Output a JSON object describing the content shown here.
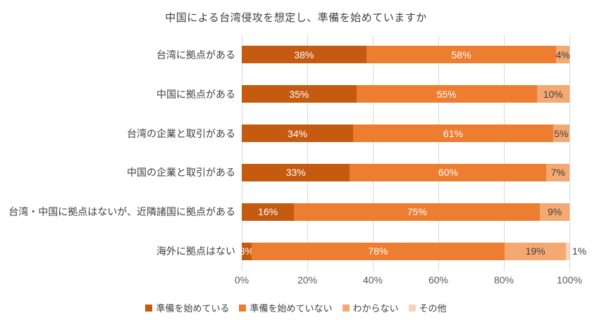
{
  "chart_data": {
    "type": "bar",
    "subtype": "stacked-horizontal",
    "title": "中国による台湾侵攻を想定し、準備を始めていますか",
    "categories": [
      "台湾に拠点がある",
      "中国に拠点がある",
      "台湾の企業と取引がある",
      "中国の企業と取引がある",
      "台湾・中国に拠点はないが、近隣諸国に拠点がある",
      "海外に拠点はない"
    ],
    "series": [
      {
        "name": "準備を始めている",
        "color": "#C55A11",
        "label_color": "#FFFFFF",
        "values": [
          38,
          35,
          34,
          33,
          16,
          3
        ]
      },
      {
        "name": "準備を始めていない",
        "color": "#ED7D31",
        "label_color": "#FFFFFF",
        "values": [
          58,
          55,
          61,
          60,
          75,
          78
        ]
      },
      {
        "name": "わからない",
        "color": "#F4A872",
        "label_color": "#404040",
        "values": [
          4,
          10,
          5,
          7,
          9,
          19
        ]
      },
      {
        "name": "その他",
        "color": "#FAD3BB",
        "label_color": "#404040",
        "values": [
          0,
          0,
          0,
          0,
          0,
          1
        ]
      }
    ],
    "x_ticks": [
      "0%",
      "20%",
      "40%",
      "60%",
      "80%",
      "100%"
    ],
    "xlim": [
      0,
      100
    ],
    "grid": true,
    "legend_position": "bottom",
    "colors": {
      "gridline": "#D9D9D9",
      "axis_text": "#595959",
      "title_text": "#404040"
    }
  }
}
